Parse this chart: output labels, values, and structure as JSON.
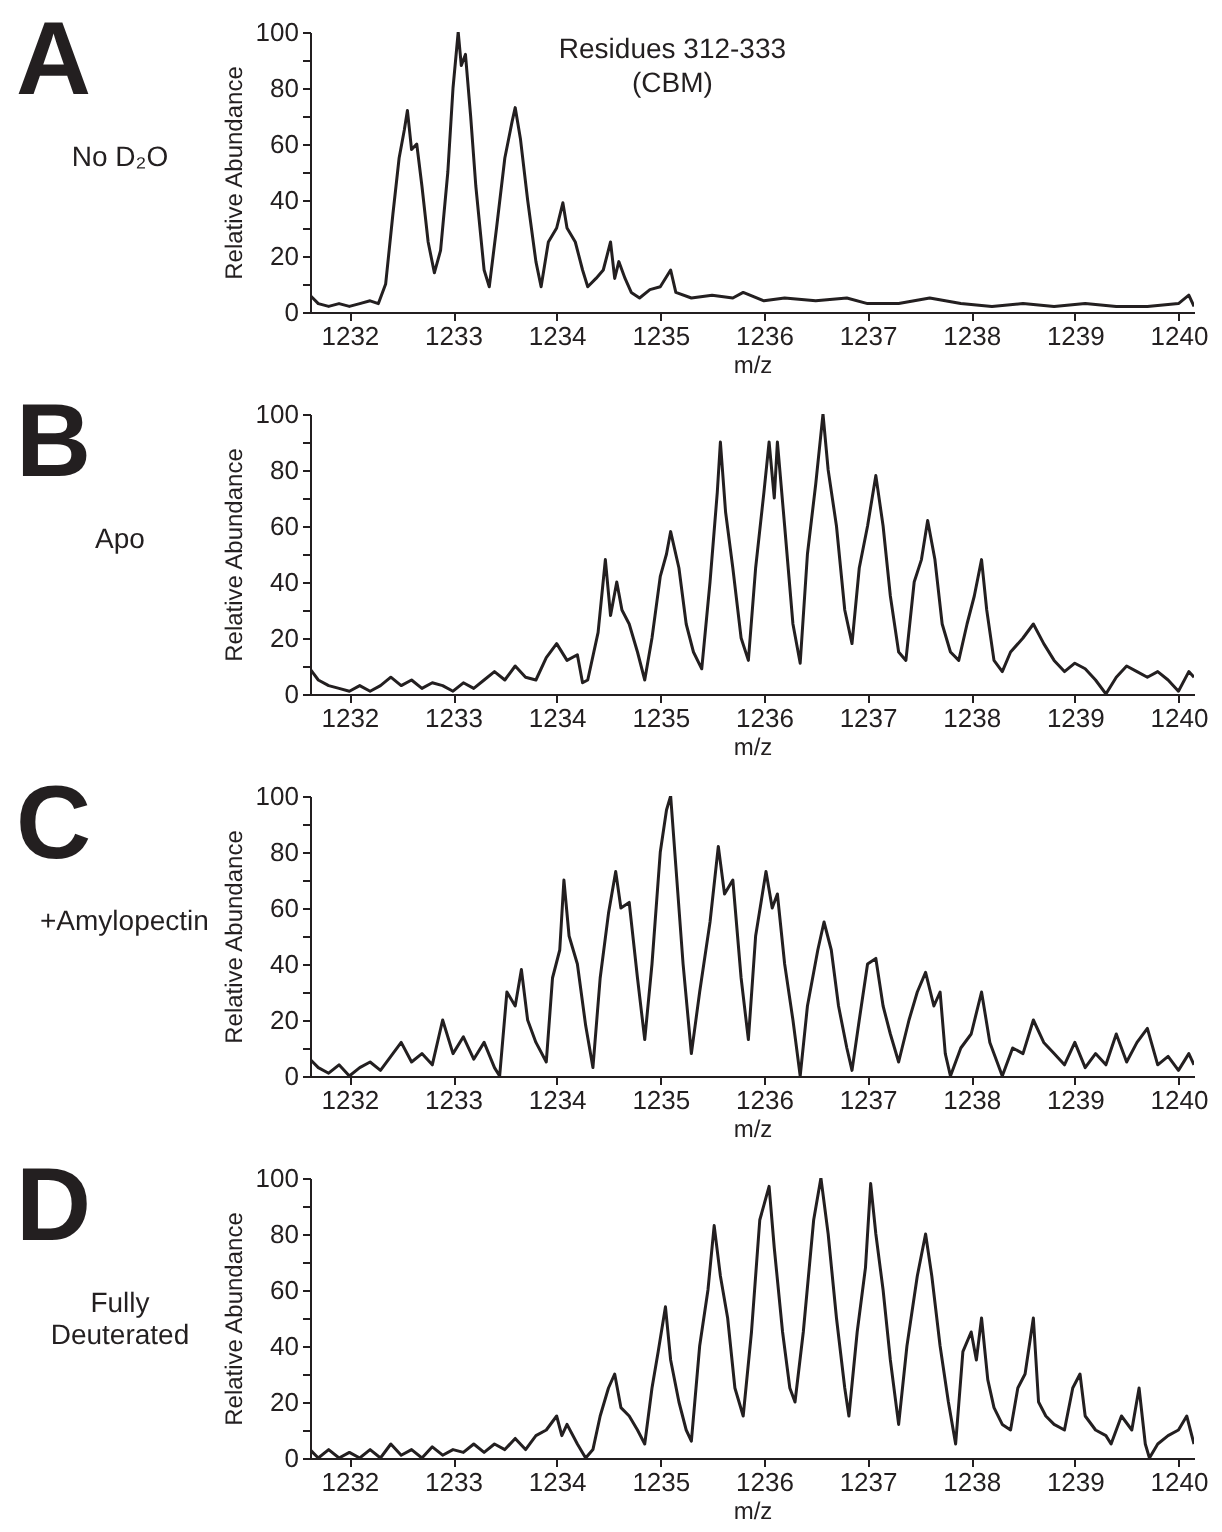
{
  "chart_data": [
    {
      "type": "line",
      "title": "A",
      "subtitle": "No D₂O",
      "annotations": [
        "Residues 312-333",
        "(CBM)"
      ],
      "xlabel": "m/z",
      "ylabel": "Relative Abundance",
      "color": "#231f20",
      "xlim": [
        1231.62,
        1240.15
      ],
      "ylim": [
        0,
        100
      ],
      "xticks": [
        1232,
        1233,
        1234,
        1235,
        1236,
        1237,
        1238,
        1239,
        1240
      ],
      "yticks": [
        0,
        {
          "value": 10,
          "label": null
        },
        20,
        {
          "value": 30,
          "label": null
        },
        40,
        {
          "value": 50,
          "label": null
        },
        60,
        {
          "value": 70,
          "label": null
        },
        80,
        {
          "value": 90,
          "label": null
        },
        100
      ],
      "x": [
        1231.62,
        1231.7,
        1231.8,
        1231.9,
        1232.0,
        1232.1,
        1232.2,
        1232.28,
        1232.35,
        1232.42,
        1232.48,
        1232.53,
        1232.56,
        1232.6,
        1232.65,
        1232.7,
        1232.76,
        1232.82,
        1232.88,
        1232.95,
        1233.0,
        1233.05,
        1233.08,
        1233.12,
        1233.17,
        1233.22,
        1233.3,
        1233.35,
        1233.42,
        1233.5,
        1233.57,
        1233.6,
        1233.65,
        1233.72,
        1233.8,
        1233.85,
        1233.92,
        1234.0,
        1234.06,
        1234.1,
        1234.18,
        1234.25,
        1234.3,
        1234.38,
        1234.45,
        1234.52,
        1234.56,
        1234.6,
        1234.66,
        1234.72,
        1234.8,
        1234.9,
        1235.0,
        1235.1,
        1235.15,
        1235.3,
        1235.5,
        1235.7,
        1235.8,
        1236.0,
        1236.2,
        1236.5,
        1236.8,
        1237.0,
        1237.3,
        1237.6,
        1237.9,
        1238.2,
        1238.5,
        1238.8,
        1239.1,
        1239.4,
        1239.7,
        1240.0,
        1240.1,
        1240.15
      ],
      "values": [
        6,
        3,
        2,
        3,
        2,
        3,
        4,
        3,
        10,
        35,
        55,
        65,
        72,
        58,
        60,
        45,
        25,
        14,
        22,
        50,
        80,
        100,
        88,
        92,
        70,
        45,
        15,
        9,
        30,
        55,
        68,
        73,
        62,
        40,
        18,
        9,
        25,
        30,
        39,
        30,
        25,
        15,
        9,
        12,
        15,
        25,
        12,
        18,
        12,
        7,
        5,
        8,
        9,
        15,
        7,
        5,
        6,
        5,
        7,
        4,
        5,
        4,
        5,
        3,
        3,
        5,
        3,
        2,
        3,
        2,
        3,
        2,
        2,
        3,
        6,
        2
      ]
    },
    {
      "type": "line",
      "title": "B",
      "subtitle": "Apo",
      "xlabel": "m/z",
      "ylabel": "Relative Abundance",
      "color": "#231f20",
      "xlim": [
        1231.62,
        1240.15
      ],
      "ylim": [
        0,
        100
      ],
      "xticks": [
        1232,
        1233,
        1234,
        1235,
        1236,
        1237,
        1238,
        1239,
        1240
      ],
      "yticks": [
        0,
        {
          "value": 10,
          "label": null
        },
        20,
        {
          "value": 30,
          "label": null
        },
        40,
        {
          "value": 50,
          "label": null
        },
        60,
        {
          "value": 70,
          "label": null
        },
        80,
        {
          "value": 90,
          "label": null
        },
        100
      ],
      "x": [
        1231.62,
        1231.7,
        1231.8,
        1231.9,
        1232.0,
        1232.1,
        1232.2,
        1232.3,
        1232.4,
        1232.5,
        1232.6,
        1232.7,
        1232.8,
        1232.9,
        1233.0,
        1233.1,
        1233.2,
        1233.3,
        1233.4,
        1233.5,
        1233.6,
        1233.7,
        1233.8,
        1233.9,
        1234.0,
        1234.1,
        1234.2,
        1234.25,
        1234.3,
        1234.4,
        1234.47,
        1234.52,
        1234.58,
        1234.63,
        1234.7,
        1234.78,
        1234.85,
        1234.92,
        1235.0,
        1235.06,
        1235.1,
        1235.18,
        1235.25,
        1235.32,
        1235.4,
        1235.48,
        1235.55,
        1235.58,
        1235.63,
        1235.7,
        1235.78,
        1235.85,
        1235.92,
        1236.0,
        1236.05,
        1236.1,
        1236.13,
        1236.2,
        1236.28,
        1236.35,
        1236.42,
        1236.5,
        1236.57,
        1236.62,
        1236.7,
        1236.78,
        1236.85,
        1236.92,
        1237.0,
        1237.08,
        1237.15,
        1237.22,
        1237.3,
        1237.37,
        1237.45,
        1237.52,
        1237.58,
        1237.65,
        1237.72,
        1237.8,
        1237.88,
        1237.96,
        1238.03,
        1238.1,
        1238.15,
        1238.22,
        1238.3,
        1238.38,
        1238.5,
        1238.6,
        1238.7,
        1238.8,
        1238.9,
        1239.0,
        1239.1,
        1239.2,
        1239.3,
        1239.4,
        1239.5,
        1239.6,
        1239.7,
        1239.8,
        1239.9,
        1240.0,
        1240.1,
        1240.15
      ],
      "values": [
        9,
        5,
        3,
        2,
        1,
        3,
        1,
        3,
        6,
        3,
        5,
        2,
        4,
        3,
        1,
        4,
        2,
        5,
        8,
        5,
        10,
        6,
        5,
        13,
        18,
        12,
        14,
        4,
        5,
        22,
        48,
        28,
        40,
        30,
        25,
        15,
        5,
        20,
        42,
        50,
        58,
        45,
        25,
        15,
        9,
        40,
        72,
        90,
        65,
        45,
        20,
        12,
        45,
        72,
        90,
        70,
        90,
        60,
        25,
        11,
        50,
        75,
        100,
        80,
        60,
        30,
        18,
        45,
        60,
        78,
        60,
        35,
        15,
        12,
        40,
        48,
        62,
        48,
        25,
        15,
        12,
        25,
        35,
        48,
        30,
        12,
        8,
        15,
        20,
        25,
        18,
        12,
        8,
        11,
        9,
        5,
        0,
        6,
        10,
        8,
        6,
        8,
        5,
        1,
        8,
        6
      ]
    },
    {
      "type": "line",
      "title": "C",
      "subtitle": "+Amylopectin",
      "xlabel": "m/z",
      "ylabel": "Relative Abundance",
      "color": "#231f20",
      "xlim": [
        1231.62,
        1240.15
      ],
      "ylim": [
        0,
        100
      ],
      "xticks": [
        1232,
        1233,
        1234,
        1235,
        1236,
        1237,
        1238,
        1239,
        1240
      ],
      "yticks": [
        0,
        {
          "value": 10,
          "label": null
        },
        20,
        {
          "value": 30,
          "label": null
        },
        40,
        {
          "value": 50,
          "label": null
        },
        60,
        {
          "value": 70,
          "label": null
        },
        80,
        {
          "value": 90,
          "label": null
        },
        100
      ],
      "x": [
        1231.62,
        1231.7,
        1231.8,
        1231.9,
        1232.0,
        1232.1,
        1232.2,
        1232.3,
        1232.4,
        1232.5,
        1232.6,
        1232.7,
        1232.8,
        1232.9,
        1233.0,
        1233.1,
        1233.2,
        1233.3,
        1233.4,
        1233.45,
        1233.52,
        1233.6,
        1233.66,
        1233.72,
        1233.8,
        1233.9,
        1233.96,
        1234.03,
        1234.07,
        1234.12,
        1234.2,
        1234.28,
        1234.35,
        1234.42,
        1234.5,
        1234.57,
        1234.62,
        1234.7,
        1234.78,
        1234.85,
        1234.92,
        1235.0,
        1235.06,
        1235.1,
        1235.15,
        1235.22,
        1235.3,
        1235.38,
        1235.48,
        1235.56,
        1235.62,
        1235.7,
        1235.78,
        1235.85,
        1235.92,
        1236.02,
        1236.08,
        1236.13,
        1236.2,
        1236.28,
        1236.35,
        1236.42,
        1236.52,
        1236.58,
        1236.65,
        1236.72,
        1236.8,
        1236.85,
        1236.92,
        1237.0,
        1237.08,
        1237.15,
        1237.22,
        1237.3,
        1237.4,
        1237.48,
        1237.56,
        1237.64,
        1237.7,
        1237.75,
        1237.8,
        1237.9,
        1238.0,
        1238.1,
        1238.18,
        1238.25,
        1238.3,
        1238.4,
        1238.5,
        1238.6,
        1238.7,
        1238.8,
        1238.9,
        1239.0,
        1239.1,
        1239.2,
        1239.3,
        1239.4,
        1239.5,
        1239.6,
        1239.7,
        1239.8,
        1239.9,
        1240.0,
        1240.1,
        1240.15
      ],
      "values": [
        6,
        3,
        1,
        4,
        0,
        3,
        5,
        2,
        7,
        12,
        5,
        8,
        4,
        20,
        8,
        14,
        6,
        12,
        3,
        0,
        30,
        25,
        38,
        20,
        12,
        5,
        35,
        45,
        70,
        50,
        40,
        18,
        3,
        35,
        58,
        73,
        60,
        62,
        35,
        13,
        40,
        80,
        95,
        100,
        75,
        40,
        8,
        30,
        55,
        82,
        65,
        70,
        35,
        13,
        50,
        73,
        60,
        65,
        40,
        20,
        0,
        25,
        45,
        55,
        45,
        25,
        10,
        2,
        20,
        40,
        42,
        25,
        15,
        5,
        20,
        30,
        37,
        25,
        30,
        8,
        0,
        10,
        15,
        30,
        12,
        5,
        0,
        10,
        8,
        20,
        12,
        8,
        4,
        12,
        3,
        8,
        4,
        15,
        5,
        12,
        17,
        4,
        7,
        2,
        8,
        4
      ]
    },
    {
      "type": "line",
      "title": "D",
      "subtitle": "Fully Deuterated",
      "xlabel": "m/z",
      "ylabel": "Relative Abundance",
      "color": "#231f20",
      "xlim": [
        1231.62,
        1240.15
      ],
      "ylim": [
        0,
        100
      ],
      "xticks": [
        1232,
        1233,
        1234,
        1235,
        1236,
        1237,
        1238,
        1239,
        1240
      ],
      "yticks": [
        0,
        {
          "value": 10,
          "label": null
        },
        20,
        {
          "value": 30,
          "label": null
        },
        40,
        {
          "value": 50,
          "label": null
        },
        60,
        {
          "value": 70,
          "label": null
        },
        80,
        {
          "value": 90,
          "label": null
        },
        100
      ],
      "x": [
        1231.62,
        1231.7,
        1231.8,
        1231.9,
        1232.0,
        1232.1,
        1232.2,
        1232.3,
        1232.4,
        1232.5,
        1232.6,
        1232.7,
        1232.8,
        1232.9,
        1233.0,
        1233.1,
        1233.2,
        1233.3,
        1233.4,
        1233.5,
        1233.6,
        1233.7,
        1233.8,
        1233.9,
        1234.0,
        1234.05,
        1234.1,
        1234.2,
        1234.28,
        1234.35,
        1234.42,
        1234.5,
        1234.56,
        1234.62,
        1234.7,
        1234.78,
        1234.85,
        1234.92,
        1234.98,
        1235.05,
        1235.1,
        1235.18,
        1235.25,
        1235.3,
        1235.38,
        1235.46,
        1235.52,
        1235.58,
        1235.65,
        1235.72,
        1235.8,
        1235.88,
        1235.96,
        1236.05,
        1236.1,
        1236.18,
        1236.25,
        1236.3,
        1236.38,
        1236.48,
        1236.55,
        1236.62,
        1236.7,
        1236.78,
        1236.82,
        1236.9,
        1236.98,
        1237.03,
        1237.08,
        1237.15,
        1237.22,
        1237.3,
        1237.38,
        1237.48,
        1237.56,
        1237.62,
        1237.7,
        1237.78,
        1237.85,
        1237.92,
        1238.0,
        1238.05,
        1238.1,
        1238.16,
        1238.22,
        1238.3,
        1238.38,
        1238.45,
        1238.52,
        1238.6,
        1238.65,
        1238.72,
        1238.8,
        1238.9,
        1238.98,
        1239.05,
        1239.1,
        1239.2,
        1239.3,
        1239.35,
        1239.45,
        1239.55,
        1239.62,
        1239.68,
        1239.72,
        1239.8,
        1239.9,
        1240.0,
        1240.08,
        1240.15
      ],
      "values": [
        3,
        0,
        3,
        0,
        2,
        0,
        3,
        0,
        5,
        1,
        3,
        0,
        4,
        1,
        3,
        2,
        5,
        2,
        5,
        3,
        7,
        3,
        8,
        10,
        15,
        8,
        12,
        5,
        0,
        3,
        15,
        25,
        30,
        18,
        15,
        10,
        5,
        25,
        38,
        54,
        35,
        20,
        10,
        6,
        40,
        60,
        83,
        65,
        50,
        25,
        15,
        45,
        85,
        97,
        75,
        45,
        25,
        20,
        45,
        85,
        100,
        80,
        50,
        25,
        15,
        45,
        68,
        98,
        80,
        60,
        35,
        12,
        40,
        65,
        80,
        65,
        40,
        20,
        5,
        38,
        45,
        35,
        50,
        28,
        18,
        12,
        10,
        25,
        30,
        50,
        20,
        15,
        12,
        10,
        25,
        30,
        15,
        10,
        8,
        5,
        15,
        10,
        25,
        5,
        0,
        5,
        8,
        10,
        15,
        5
      ]
    }
  ]
}
